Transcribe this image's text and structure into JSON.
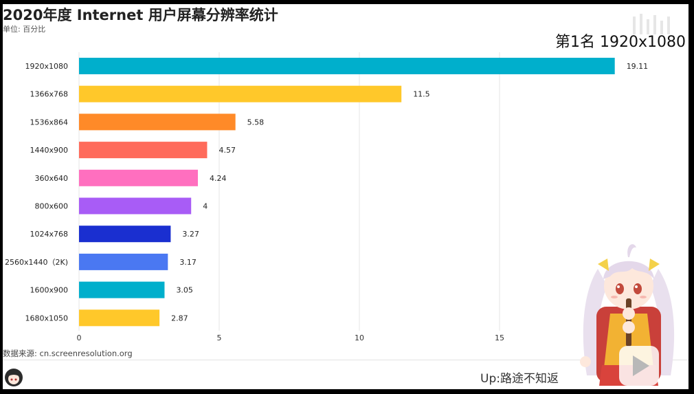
{
  "title": "2020年度 Internet 用户屏幕分辨率统计",
  "subtitle": "单位: 百分比",
  "rank_label": "第1名 1920x1080",
  "source": "数据来源: cn.screenresolution.org",
  "uploader": "Up:路途不知返",
  "icons": {
    "mascot": "anime-mascot-illustration",
    "avatar": "uploader-avatar-icon",
    "play": "play-button-icon",
    "watermark": "watermark-icon"
  },
  "chart_data": {
    "type": "bar",
    "orientation": "horizontal",
    "categories": [
      "1920x1080",
      "1366x768",
      "1536x864",
      "1440x900",
      "360x640",
      "800x600",
      "1024x768",
      "2560x1440（2K)",
      "1600x900",
      "1680x1050"
    ],
    "values": [
      19.11,
      11.5,
      5.58,
      4.57,
      4.24,
      4,
      3.27,
      3.17,
      3.05,
      2.87
    ],
    "value_labels": [
      "19.11",
      "11.5",
      "5.58",
      "4.57",
      "4.24",
      "4",
      "3.27",
      "3.17",
      "3.05",
      "2.87"
    ],
    "colors": [
      "#00afcc",
      "#ffc82a",
      "#ff8a28",
      "#ff6b5b",
      "#ff6fbf",
      "#a85cf6",
      "#1a2fd0",
      "#4a78f2",
      "#00afcc",
      "#ffc82a"
    ],
    "xticks": [
      0,
      5,
      10,
      15
    ],
    "xtick_labels": [
      "0",
      "5",
      "10",
      "15"
    ],
    "xlim": [
      0,
      20
    ],
    "grid": true
  }
}
